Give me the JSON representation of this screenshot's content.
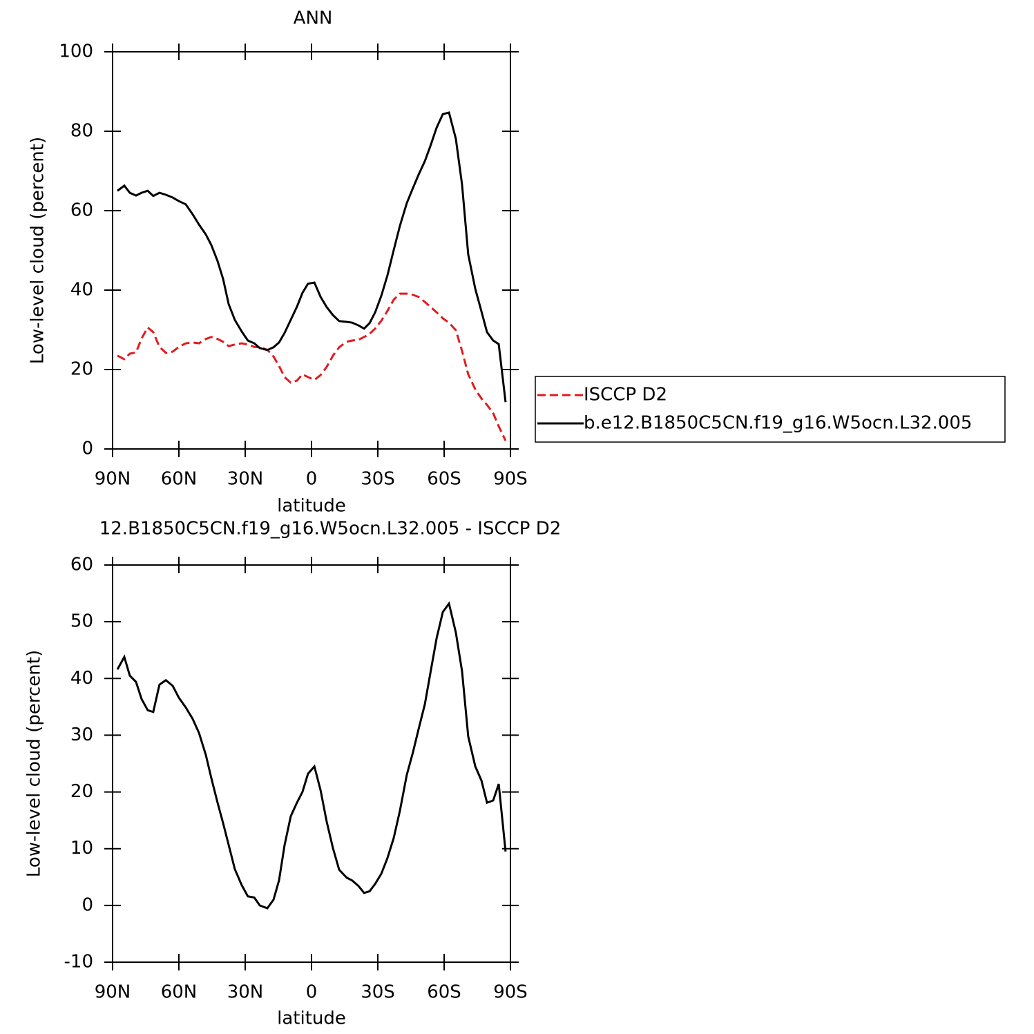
{
  "chart_data": [
    {
      "type": "line",
      "title": "ANN",
      "xlabel": "latitude",
      "ylabel": "Low-level cloud (percent)",
      "xlim": [
        90,
        -90
      ],
      "xticks": [
        {
          "value": 90,
          "label": "90N"
        },
        {
          "value": 60,
          "label": "60N"
        },
        {
          "value": 30,
          "label": "30N"
        },
        0,
        {
          "value": -30,
          "label": "30S"
        },
        {
          "value": -60,
          "label": "60S"
        },
        {
          "value": -90,
          "label": "90S"
        }
      ],
      "ylim": [
        0,
        100
      ],
      "yticks": [
        0,
        20,
        40,
        60,
        80,
        100
      ],
      "legend": "outside-right",
      "x": [
        87.8,
        84.7,
        82.2,
        79.4,
        76.9,
        74.1,
        71.6,
        68.8,
        65.9,
        62.8,
        60,
        56.9,
        53.8,
        50.9,
        47.8,
        45.3,
        42.5,
        40,
        37.5,
        34.7,
        31.6,
        28.8,
        25.9,
        23.4,
        20,
        17.2,
        14.7,
        12.2,
        9.4,
        6.6,
        4.1,
        1.6,
        -1.3,
        -4.1,
        -6.9,
        -9.7,
        -12.5,
        -15.9,
        -18.4,
        -21.3,
        -23.8,
        -26.3,
        -28.8,
        -31.6,
        -34.4,
        -37.2,
        -40,
        -43.1,
        -45.9,
        -48.4,
        -51.3,
        -53.8,
        -56.6,
        -59.4,
        -62.2,
        -65.3,
        -68.1,
        -70.9,
        -74.1,
        -76.9,
        -79.4,
        -82.2,
        -84.7,
        -87.8
      ],
      "series": [
        {
          "name": "ISCCP D2",
          "color": "#e41a1c",
          "dash": true,
          "values": [
            23.5,
            22.6,
            24,
            24.3,
            27.8,
            30.6,
            29.4,
            25.7,
            24.2,
            24.5,
            25.7,
            26.6,
            26.8,
            26.6,
            27.7,
            28.2,
            27.7,
            27,
            25.9,
            26.3,
            26.6,
            26.3,
            25.7,
            25.6,
            25,
            23.3,
            20.9,
            18.1,
            16.7,
            17.2,
            18.8,
            18.1,
            17.4,
            18.6,
            20.7,
            23.5,
            25.6,
            27,
            27.3,
            27.5,
            28.2,
            29,
            30.3,
            32.3,
            34.8,
            37.6,
            39.1,
            39.1,
            38.8,
            38.3,
            37,
            35.8,
            34.4,
            32.9,
            31.8,
            29.9,
            24.7,
            18.8,
            15,
            12.7,
            11.1,
            9,
            5.7,
            2.1
          ]
        },
        {
          "name": "b.e12.B1850C5CN.f19_g16.W5ocn.L32.005",
          "color": "#000000",
          "dash": false,
          "values": [
            65,
            66.3,
            64.5,
            63.8,
            64.5,
            65,
            63.7,
            64.5,
            64,
            63.3,
            62.4,
            61.6,
            59.1,
            56.5,
            54,
            51.3,
            47.3,
            42.8,
            36.5,
            32.5,
            29.6,
            27.3,
            26.6,
            25.4,
            24.9,
            25.6,
            26.8,
            29.2,
            32.5,
            35.8,
            39.3,
            41.6,
            41.9,
            38.3,
            35.7,
            33.7,
            32.2,
            32,
            31.8,
            31.1,
            30.3,
            31.7,
            34.4,
            38.6,
            43.8,
            50.1,
            56.2,
            61.9,
            65.7,
            69,
            72.5,
            76.3,
            80.9,
            84.3,
            84.7,
            78.1,
            66.6,
            49,
            40.3,
            34.6,
            29.4,
            27.3,
            26.4,
            11.8
          ]
        }
      ]
    },
    {
      "type": "line",
      "title": "12.B1850C5CN.f19_g16.W5ocn.L32.005 - ISCCP D2",
      "xlabel": "latitude",
      "ylabel": "Low-level cloud (percent)",
      "xlim": [
        90,
        -90
      ],
      "xticks": [
        {
          "value": 90,
          "label": "90N"
        },
        {
          "value": 60,
          "label": "60N"
        },
        {
          "value": 30,
          "label": "30N"
        },
        0,
        {
          "value": -30,
          "label": "30S"
        },
        {
          "value": -60,
          "label": "60S"
        },
        {
          "value": -90,
          "label": "90S"
        }
      ],
      "ylim": [
        -10,
        60
      ],
      "yticks": [
        -10,
        0,
        10,
        20,
        30,
        40,
        50,
        60
      ],
      "x": [
        87.8,
        84.7,
        82.2,
        79.4,
        76.9,
        74.1,
        71.6,
        68.8,
        65.9,
        62.8,
        60,
        56.9,
        53.8,
        50.9,
        47.8,
        45.3,
        42.5,
        40,
        37.5,
        34.7,
        31.6,
        28.8,
        25.9,
        23.4,
        20,
        17.2,
        14.7,
        12.2,
        9.4,
        6.6,
        4.1,
        1.6,
        -1.3,
        -4.1,
        -6.9,
        -9.7,
        -12.5,
        -15.9,
        -18.4,
        -21.3,
        -23.8,
        -26.3,
        -28.8,
        -31.6,
        -34.4,
        -37.2,
        -40,
        -43.1,
        -45.9,
        -48.4,
        -51.3,
        -53.8,
        -56.6,
        -59.4,
        -62.2,
        -65.3,
        -68.1,
        -70.9,
        -74.1,
        -76.9,
        -79.4,
        -82.2,
        -84.7,
        -87.8
      ],
      "series": [
        {
          "color": "#000000",
          "dash": false,
          "values": [
            41.6,
            43.8,
            40.5,
            39.4,
            36.4,
            34.4,
            34.1,
            38.9,
            39.7,
            38.7,
            36.6,
            34.9,
            32.9,
            30.4,
            26.5,
            22.4,
            18.1,
            14.5,
            10.7,
            6.4,
            3.6,
            1.6,
            1.4,
            0,
            -0.5,
            1,
            4.4,
            10.6,
            15.7,
            18.1,
            20,
            23.2,
            24.5,
            20.3,
            14.7,
            10.1,
            6.3,
            4.9,
            4.4,
            3.4,
            2.2,
            2.5,
            3.8,
            5.6,
            8.4,
            11.9,
            16.7,
            23,
            27,
            31,
            35.5,
            41,
            47.1,
            51.7,
            53.2,
            48.1,
            41.3,
            29.8,
            24.5,
            22,
            18.1,
            18.5,
            21.4,
            9.5
          ]
        }
      ]
    }
  ]
}
